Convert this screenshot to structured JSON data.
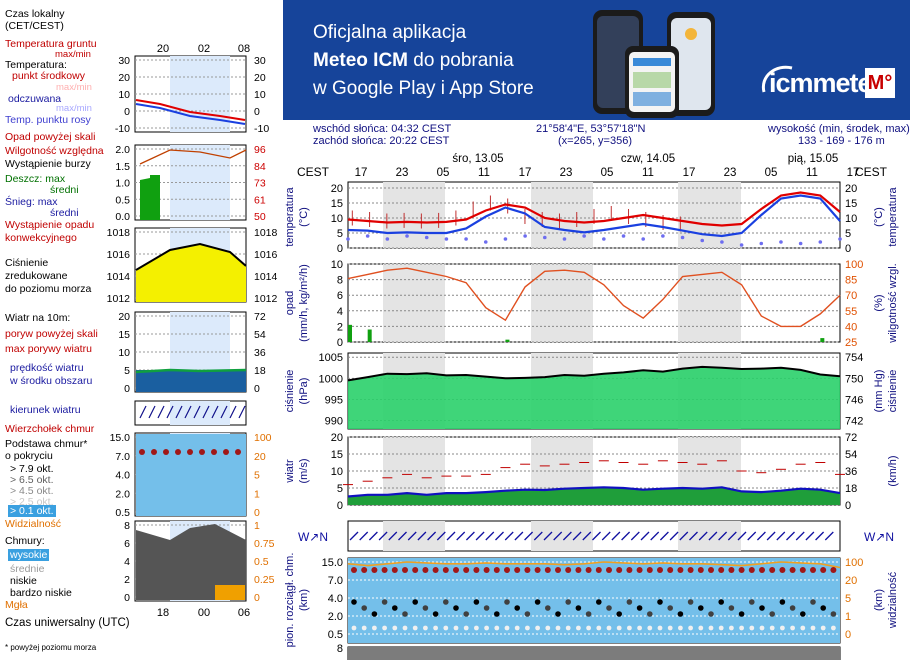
{
  "legend": {
    "time_local": "Czas lokalny",
    "time_local_tz": "(CET/CEST)",
    "soil_temp": "Temperatura gruntu",
    "soil_temp_sub": "max/min",
    "temperature": "Temperatura:",
    "midpoint": "punkt środkowy",
    "max_min_a": "max/min",
    "perceived": "odczuwana",
    "max_min_b": "max/min",
    "dew_temp": "Temp. punktu rosy",
    "precip_above": "Opad powyżej skali",
    "rel_humidity": "Wilgotność względna",
    "storm": "Wystąpienie burzy",
    "rain_max": "Deszcz: max",
    "rain_mean": "średni",
    "snow_max": "Śnieg:   max",
    "snow_mean": "średni",
    "conv_precip": "Wystąpienie opadu",
    "conv_precip2": "konwekcyjnego",
    "pressure": "Ciśnienie",
    "pressure2": "zredukowane",
    "pressure3": "do poziomu morza",
    "wind_at": "Wiatr na 10m:",
    "gusts_above": "poryw powyżej skali",
    "max_gusts": "max porywy wiatru",
    "wind_speed": "prędkość wiatru",
    "wind_speed2": "w środku obszaru",
    "wind_dir": "kierunek wiatru",
    "cloud_top": "Wierzchołek chmur",
    "cloud_base": "Podstawa chmur*",
    "cloud_base2": "o pokryciu",
    "okt1": "> 7.9 okt.",
    "okt2": "> 6.5 okt.",
    "okt3": "> 4.5 okt.",
    "okt4": "> 2.5 okt.",
    "okt5": "> 0.1 okt.",
    "visibility": "Widzialność",
    "clouds": "Chmury:",
    "high": "wysokie",
    "mid": "średnie",
    "low": "niskie",
    "very_low": "bardzo niskie",
    "fog": "Mgła",
    "utc": "Czas uniwersalny (UTC)",
    "footnote": "* powyżej poziomu morza"
  },
  "mini_axes": {
    "top_hours": [
      "20",
      "02",
      "08"
    ],
    "bottom_hours": [
      "18",
      "00",
      "06"
    ],
    "temp_left": [
      "30",
      "20",
      "10",
      "0",
      "-10"
    ],
    "temp_right": [
      "30",
      "20",
      "10",
      "0",
      "-10"
    ],
    "precip_left": [
      "2.0",
      "1.5",
      "1.0",
      "0.5",
      "0.0"
    ],
    "humid_right": [
      "96",
      "84",
      "73",
      "61",
      "50"
    ],
    "press_left": [
      "1018",
      "1016",
      "1014",
      "1012"
    ],
    "press_right": [
      "1018",
      "1016",
      "1014",
      "1012"
    ],
    "wind_left": [
      "20",
      "15",
      "10",
      "5",
      "0"
    ],
    "wind_right": [
      "72",
      "54",
      "36",
      "18",
      "0"
    ],
    "cloud_left": [
      "15.0",
      "7.0",
      "4.0",
      "2.0",
      "0.5"
    ],
    "cloud_right": [
      "100",
      "20",
      "5",
      "1",
      "0"
    ],
    "layers_left": [
      "8",
      "6",
      "4",
      "2",
      "0"
    ],
    "layers_right": [
      "1",
      "0.75",
      "0.5",
      "0.25",
      "0"
    ]
  },
  "banner": {
    "line1": "Oficjalna aplikacja",
    "line2a": "Meteo ICM",
    "line2b": " do pobrania",
    "line3": "w Google Play i App Store",
    "brand": "icmmeteo",
    "brand_mark": "M°"
  },
  "info": {
    "sunrise": "wschód słońca: 04:32 CEST",
    "sunset": "zachód słońca: 20:22 CEST",
    "coords": "21°58'4\"E, 53°57'18\"N",
    "grid": "(x=265,  y=356)",
    "elev_label": "wysokość (min, środek, max)",
    "elev_vals": "133 - 169 - 176 m"
  },
  "main": {
    "tz": "CEST",
    "hours": [
      "17",
      "23",
      "05",
      "11",
      "17",
      "23",
      "05",
      "11",
      "17",
      "23",
      "05",
      "11",
      "17"
    ],
    "days": [
      "śro, 13.05",
      "czw, 14.05",
      "pią, 15.05"
    ],
    "temp_ticks": [
      "20",
      "15",
      "10",
      "5",
      "0"
    ],
    "precip_ticks": [
      "10",
      "8",
      "6",
      "4",
      "2",
      "0"
    ],
    "humid_ticks": [
      "100",
      "85",
      "70",
      "55",
      "40",
      "25"
    ],
    "press_left_ticks": [
      "1005",
      "1000",
      "995",
      "990"
    ],
    "press_right_ticks": [
      "754",
      "750",
      "746",
      "742"
    ],
    "wind_left_ticks": [
      "20",
      "15",
      "10",
      "5",
      "0"
    ],
    "wind_right_ticks": [
      "72",
      "54",
      "36",
      "18",
      "0"
    ],
    "cloud_left_ticks": [
      "15.0",
      "7.0",
      "4.0",
      "2.0",
      "0.5"
    ],
    "cloud_right_ticks": [
      "100",
      "20",
      "5",
      "1",
      "0"
    ],
    "bottom_tick": "8",
    "lab_temp": "temperatura",
    "lab_temp_u": "(°C)",
    "lab_precip": "opad",
    "lab_precip_u": "(mm/h, kg/m²/h)",
    "lab_humid": "wilgotność wzgl.",
    "lab_humid_u": "(%)",
    "lab_press": "ciśnienie",
    "lab_press_u": "(hPa)",
    "lab_press_r": "ciśnienie",
    "lab_press_ru": "(mm Hg)",
    "lab_wind": "wiatr",
    "lab_wind_u": "(m/s)",
    "lab_wind_ru": "(km/h)",
    "lab_cloud": "pion. rozciągł. chm.",
    "lab_cloud_u": "(km)",
    "lab_vis": "widzialność",
    "lab_vis_u": "(km)"
  },
  "chart_data": [
    {
      "type": "line",
      "title": "",
      "ylabel": "temperatura (°C)",
      "x": [
        "17",
        "20",
        "23",
        "02",
        "05",
        "08",
        "11",
        "14",
        "17",
        "20",
        "23",
        "02",
        "05",
        "08",
        "11",
        "14",
        "17",
        "20",
        "23",
        "02",
        "05",
        "08",
        "11",
        "14",
        "17",
        "20"
      ],
      "ylim": [
        0,
        22
      ],
      "series": [
        {
          "name": "temperatura",
          "color": "#e00000",
          "values": [
            9.5,
            9,
            8.5,
            8.7,
            8.5,
            8.7,
            9.5,
            12.5,
            14.5,
            13.5,
            10,
            9,
            8.5,
            9,
            10,
            11,
            10,
            9,
            8,
            7.5,
            8,
            13,
            17.5,
            18.5,
            17.5,
            12
          ]
        },
        {
          "name": "odczuwana",
          "color": "#1a40e0",
          "values": [
            6,
            5.8,
            5,
            5.2,
            5,
            5,
            6.5,
            10.5,
            13.5,
            11.5,
            7,
            6,
            5.2,
            6,
            7,
            8,
            7,
            5.8,
            4.6,
            4,
            5,
            11,
            16.5,
            17.5,
            16.5,
            9
          ]
        },
        {
          "name": "punkt rosy",
          "color": "#6d6df0",
          "values": [
            3,
            4,
            3,
            4,
            3.5,
            3,
            3,
            2,
            3,
            4,
            3.5,
            3,
            4,
            3,
            4,
            3,
            4,
            3.5,
            2.5,
            2,
            1,
            1.5,
            2,
            1.5,
            2,
            3
          ]
        }
      ]
    },
    {
      "type": "bar",
      "ylabel": "opad (mm/h, kg/m²/h)",
      "ylim": [
        0,
        10
      ],
      "x": [
        "17",
        "20",
        "23",
        "02",
        "05",
        "08",
        "11",
        "14",
        "17",
        "20",
        "23",
        "02",
        "05",
        "08",
        "11",
        "14",
        "17",
        "20",
        "23",
        "02",
        "05",
        "08",
        "11",
        "14",
        "17",
        "20"
      ],
      "values": [
        2.2,
        1.6,
        0,
        0,
        0,
        0,
        0,
        0,
        0.3,
        0,
        0,
        0,
        0,
        0,
        0,
        0,
        0,
        0,
        0,
        0,
        0,
        0,
        0,
        0,
        0.5,
        0
      ],
      "humidity": [
        86,
        90,
        94,
        96,
        92,
        88,
        82,
        58,
        46,
        78,
        93,
        94,
        92,
        80,
        60,
        48,
        66,
        88,
        90,
        92,
        80,
        50,
        40,
        40,
        52,
        70
      ]
    },
    {
      "type": "area",
      "ylabel": "ciśnienie (hPa)",
      "ylim": [
        988,
        1006
      ],
      "x": [
        "17",
        "20",
        "23",
        "02",
        "05",
        "08",
        "11",
        "14",
        "17",
        "20",
        "23",
        "02",
        "05",
        "08",
        "11",
        "14",
        "17",
        "20",
        "23",
        "02",
        "05",
        "08",
        "11",
        "14",
        "17",
        "20"
      ],
      "values": [
        999.5,
        1000.3,
        1001.1,
        1001.0,
        1001.2,
        1000.7,
        1000.8,
        1000.4,
        1000.0,
        1000.1,
        1000.3,
        1000.8,
        1000.6,
        1001.1,
        1001.4,
        1001.9,
        1001.6,
        1002.3,
        1002.7,
        1002.5,
        1002.2,
        1002.3,
        1002.5,
        1002.0,
        1000.9,
        1000.5
      ]
    },
    {
      "type": "area",
      "ylabel": "wiatr (m/s)",
      "ylim": [
        0,
        20
      ],
      "x": [
        "17",
        "20",
        "23",
        "02",
        "05",
        "08",
        "11",
        "14",
        "17",
        "20",
        "23",
        "02",
        "05",
        "08",
        "11",
        "14",
        "17",
        "20",
        "23",
        "02",
        "05",
        "08",
        "11",
        "14",
        "17",
        "20"
      ],
      "values": [
        2.5,
        3,
        3,
        3.5,
        3,
        3.5,
        3.5,
        3.8,
        4.2,
        4.5,
        4.4,
        4.8,
        5,
        5.2,
        5,
        4.5,
        4.8,
        5,
        4.8,
        5.2,
        4,
        3.8,
        4.2,
        4.8,
        4.5,
        3.5
      ],
      "gusts": [
        6,
        7,
        8,
        9,
        8,
        8.5,
        8.5,
        9,
        11,
        12,
        11.5,
        12,
        12.5,
        13,
        12.5,
        12,
        13,
        12.5,
        12,
        13,
        10,
        9.5,
        10.5,
        12,
        12.5,
        9
      ]
    },
    {
      "type": "line",
      "ylabel": "widzialność (km)",
      "ylim": [
        0,
        100
      ],
      "x": [
        "17",
        "20",
        "23",
        "02",
        "05",
        "08",
        "11",
        "14",
        "17",
        "20",
        "23",
        "02",
        "05",
        "08",
        "11",
        "14",
        "17",
        "20",
        "23",
        "02",
        "05",
        "08",
        "11",
        "14",
        "17",
        "20"
      ],
      "values": [
        20,
        18,
        20,
        22,
        21,
        20,
        20,
        21,
        20,
        20,
        20,
        19,
        20,
        22,
        21,
        20,
        21,
        20,
        20,
        19,
        18,
        20,
        22,
        21,
        20,
        16
      ]
    }
  ]
}
